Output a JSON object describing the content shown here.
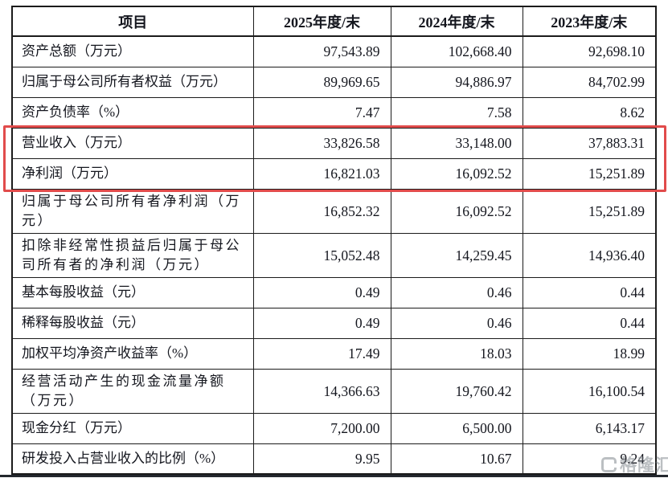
{
  "colors": {
    "highlight_box": "#e14b4b",
    "table_border": "#1b1b1b",
    "text": "#14161e",
    "watermark": "#7a8087",
    "bottom_bar": "#23272d",
    "background": "#ffffff"
  },
  "table": {
    "headers": [
      "项目",
      "2025年度/末",
      "2024年度/末",
      "2023年度/末"
    ],
    "rows": [
      {
        "item": "资产总额（万元）",
        "values": [
          "97,543.89",
          "102,668.40",
          "92,698.10"
        ],
        "highlighted": false
      },
      {
        "item": "归属于母公司所有者权益（万元）",
        "values": [
          "89,969.65",
          "94,886.97",
          "84,702.99"
        ],
        "highlighted": false
      },
      {
        "item": "资产负债率（%）",
        "values": [
          "7.47",
          "7.58",
          "8.62"
        ],
        "highlighted": false
      },
      {
        "item": "营业收入（万元）",
        "values": [
          "33,826.58",
          "33,148.00",
          "37,883.31"
        ],
        "highlighted": true
      },
      {
        "item": "净利润（万元）",
        "values": [
          "16,821.03",
          "16,092.52",
          "15,251.89"
        ],
        "highlighted": true
      },
      {
        "item": "归属于母公司所有者净利润（万\n元）",
        "values": [
          "16,852.32",
          "16,092.52",
          "15,251.89"
        ],
        "highlighted": false
      },
      {
        "item": "扣除非经常性损益后归属于母公\n司所有者的净利润（万元）",
        "values": [
          "15,052.48",
          "14,259.45",
          "14,936.40"
        ],
        "highlighted": false
      },
      {
        "item": "基本每股收益（元）",
        "values": [
          "0.49",
          "0.46",
          "0.44"
        ],
        "highlighted": false
      },
      {
        "item": "稀释每股收益（元）",
        "values": [
          "0.49",
          "0.46",
          "0.44"
        ],
        "highlighted": false
      },
      {
        "item": "加权平均净资产收益率（%）",
        "values": [
          "17.49",
          "18.03",
          "18.99"
        ],
        "highlighted": false
      },
      {
        "item": "经营活动产生的现金流量净额\n（万元）",
        "values": [
          "14,366.63",
          "19,760.42",
          "16,100.54"
        ],
        "highlighted": false
      },
      {
        "item": "现金分红（万元）",
        "values": [
          "7,200.00",
          "6,500.00",
          "6,143.17"
        ],
        "highlighted": false
      },
      {
        "item": "研发投入占营业收入的比例（%）",
        "values": [
          "9.95",
          "10.67",
          "9.24"
        ],
        "highlighted": false
      }
    ]
  },
  "watermark": {
    "text": "格隆汇"
  }
}
